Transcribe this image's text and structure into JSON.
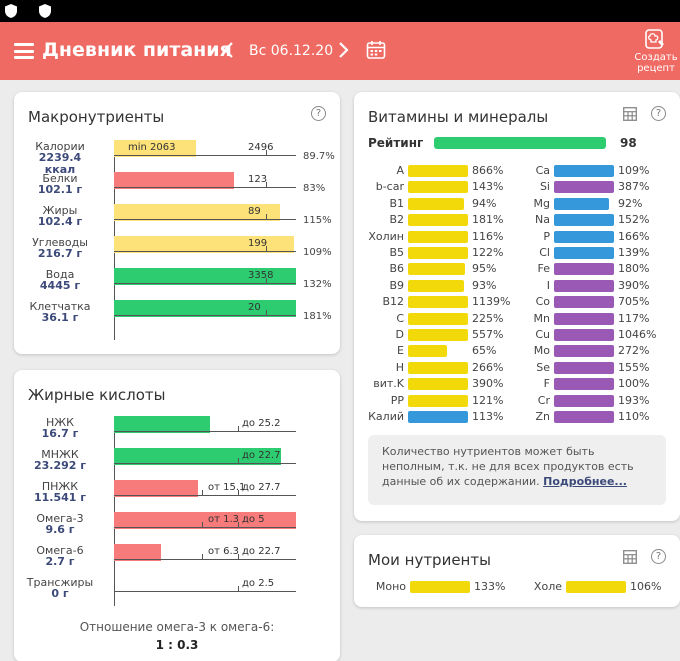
{
  "header": {
    "title": "Дневник питания",
    "date": "Вс 06.12.20",
    "create_recipe_label": "Создать рецепт"
  },
  "colors": {
    "header_bg": "#ef6a63",
    "yellow_bar": "#fde27a",
    "red_bar": "#f77b7b",
    "green_bar": "#2ecc71",
    "vit_yellow": "#f1d90a",
    "vit_blue": "#3498db",
    "vit_purple": "#9b59b6"
  },
  "macros": {
    "title": "Макронутриенты",
    "rows": [
      {
        "name": "Калории",
        "value": "2239.4",
        "unit": "ккал",
        "fill": 0.45,
        "color": "yellow",
        "left_text": "min 2063",
        "target_text": "2496",
        "pct": "89.7%"
      },
      {
        "name": "Белки",
        "value": "102.1 г",
        "fill": 0.66,
        "color": "red",
        "target_text": "123",
        "pct": "83%"
      },
      {
        "name": "Жиры",
        "value": "102.4 г",
        "fill": 0.91,
        "color": "yellow",
        "target_text": "89",
        "pct": "115%"
      },
      {
        "name": "Углеводы",
        "value": "216.7 г",
        "fill": 0.99,
        "color": "yellow",
        "target_text": "199",
        "pct": "109%"
      },
      {
        "name": "Вода",
        "value": "4445 г",
        "fill": 1.0,
        "color": "green",
        "target_text": "3358",
        "pct": "132%"
      },
      {
        "name": "Клетчатка",
        "value": "36.1 г",
        "fill": 1.0,
        "color": "green",
        "target_text": "20",
        "pct": "181%"
      }
    ]
  },
  "fats": {
    "title": "Жирные кислоты",
    "rows": [
      {
        "name": "НЖК",
        "value": "16.7 г",
        "fill": 0.53,
        "color": "green",
        "right_text": "до 25.2"
      },
      {
        "name": "МНЖК",
        "value": "23.292 г",
        "fill": 0.92,
        "color": "green",
        "right_text": "до 22.7"
      },
      {
        "name": "ПНЖК",
        "value": "11.541 г",
        "fill": 0.46,
        "color": "red",
        "mid_text": "от 15.1",
        "right_text": "до 27.7"
      },
      {
        "name": "Омега-3",
        "value": "9.6 г",
        "fill": 1.0,
        "color": "red",
        "mid_text": "от 1.3",
        "right_text": "до 5"
      },
      {
        "name": "Омега-6",
        "value": "2.7 г",
        "fill": 0.26,
        "color": "red",
        "mid_text": "от 6.3",
        "right_text": "до 22.7"
      },
      {
        "name": "Трансжиры",
        "value": "0 г",
        "fill": 0.0,
        "color": "none",
        "right_text": "до 2.5"
      }
    ],
    "ratio_label": "Отношение омега-3 к омега-6:",
    "ratio_value": "1 : 0.3"
  },
  "vitamins": {
    "title": "Витамины и минералы",
    "rating_label": "Рейтинг",
    "rating_value": "98",
    "rating_fill": 0.98,
    "left": [
      {
        "name": "A",
        "pct": "866%",
        "fill": 1.0,
        "color": "yellow"
      },
      {
        "name": "b-car",
        "pct": "143%",
        "fill": 1.0,
        "color": "yellow"
      },
      {
        "name": "B1",
        "pct": "94%",
        "fill": 0.94,
        "color": "yellow"
      },
      {
        "name": "B2",
        "pct": "181%",
        "fill": 1.0,
        "color": "yellow"
      },
      {
        "name": "Холин",
        "pct": "116%",
        "fill": 1.0,
        "color": "yellow"
      },
      {
        "name": "B5",
        "pct": "122%",
        "fill": 1.0,
        "color": "yellow"
      },
      {
        "name": "B6",
        "pct": "95%",
        "fill": 0.95,
        "color": "yellow"
      },
      {
        "name": "B9",
        "pct": "93%",
        "fill": 0.93,
        "color": "yellow"
      },
      {
        "name": "B12",
        "pct": "1139%",
        "fill": 1.0,
        "color": "yellow"
      },
      {
        "name": "C",
        "pct": "225%",
        "fill": 1.0,
        "color": "yellow"
      },
      {
        "name": "D",
        "pct": "557%",
        "fill": 1.0,
        "color": "yellow"
      },
      {
        "name": "E",
        "pct": "65%",
        "fill": 0.65,
        "color": "yellow"
      },
      {
        "name": "H",
        "pct": "266%",
        "fill": 1.0,
        "color": "yellow"
      },
      {
        "name": "вит.K",
        "pct": "390%",
        "fill": 1.0,
        "color": "yellow"
      },
      {
        "name": "PP",
        "pct": "121%",
        "fill": 1.0,
        "color": "yellow"
      },
      {
        "name": "Калий",
        "pct": "113%",
        "fill": 1.0,
        "color": "blue"
      }
    ],
    "right": [
      {
        "name": "Ca",
        "pct": "109%",
        "fill": 1.0,
        "color": "blue"
      },
      {
        "name": "Si",
        "pct": "387%",
        "fill": 1.0,
        "color": "purple"
      },
      {
        "name": "Mg",
        "pct": "92%",
        "fill": 0.92,
        "color": "blue"
      },
      {
        "name": "Na",
        "pct": "152%",
        "fill": 1.0,
        "color": "blue"
      },
      {
        "name": "P",
        "pct": "166%",
        "fill": 1.0,
        "color": "blue"
      },
      {
        "name": "Cl",
        "pct": "139%",
        "fill": 1.0,
        "color": "blue"
      },
      {
        "name": "Fe",
        "pct": "180%",
        "fill": 1.0,
        "color": "purple"
      },
      {
        "name": "I",
        "pct": "390%",
        "fill": 1.0,
        "color": "purple"
      },
      {
        "name": "Co",
        "pct": "705%",
        "fill": 1.0,
        "color": "purple"
      },
      {
        "name": "Mn",
        "pct": "117%",
        "fill": 1.0,
        "color": "purple"
      },
      {
        "name": "Cu",
        "pct": "1046%",
        "fill": 1.0,
        "color": "purple"
      },
      {
        "name": "Mo",
        "pct": "272%",
        "fill": 1.0,
        "color": "purple"
      },
      {
        "name": "Se",
        "pct": "155%",
        "fill": 1.0,
        "color": "purple"
      },
      {
        "name": "F",
        "pct": "100%",
        "fill": 1.0,
        "color": "purple"
      },
      {
        "name": "Cr",
        "pct": "193%",
        "fill": 1.0,
        "color": "purple"
      },
      {
        "name": "Zn",
        "pct": "110%",
        "fill": 1.0,
        "color": "purple"
      }
    ],
    "info_text": "Количество нутриентов может быть неполным, т.к. не для всех продуктов есть данные об их содержании.",
    "info_link": "Подробнее..."
  },
  "my_nutrients": {
    "title": "Мои нутриенты",
    "items": [
      {
        "name": "Моно",
        "pct": "133%",
        "fill": 1.0,
        "color": "yellow"
      },
      {
        "name": "Холе",
        "pct": "106%",
        "fill": 1.0,
        "color": "yellow"
      }
    ]
  }
}
